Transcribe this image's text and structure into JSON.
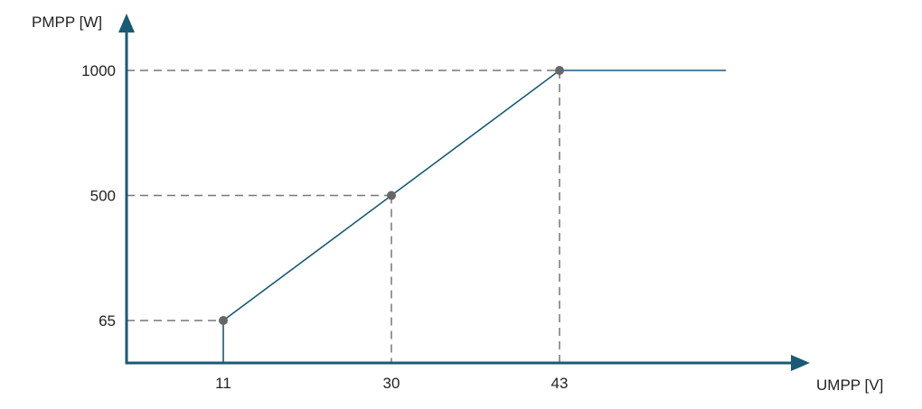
{
  "chart_data": {
    "type": "line",
    "title": "",
    "xlabel": "UMPP [V]",
    "ylabel": "PMPP [W]",
    "x_ticks": [
      "11",
      "30",
      "43"
    ],
    "y_ticks": [
      "65",
      "500",
      "1000"
    ],
    "series": [
      {
        "points": [
          [
            11,
            65
          ],
          [
            30,
            500
          ],
          [
            43,
            1000
          ]
        ],
        "continues_flat_after_last_point": true,
        "drops_vertically_to_x_axis_at_first_point": true
      }
    ],
    "guide_lines": "dashed",
    "grid": false,
    "legend": "none",
    "colors": {
      "axis": "#1b5a74",
      "line": "#1b5a74",
      "marker": "#666666",
      "guide": "#777777"
    }
  }
}
